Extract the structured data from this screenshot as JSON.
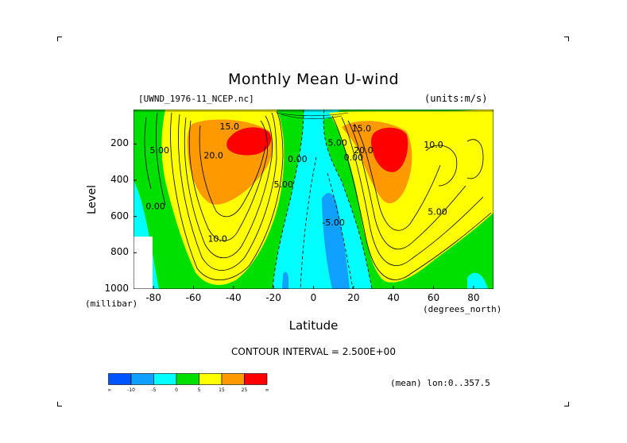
{
  "chart_data": {
    "type": "heatmap",
    "title": "Monthly Mean U-wind",
    "dataset_label": "[UWND_1976-11_NCEP.nc]",
    "units_label": "(units:m/s)",
    "xlabel": "Latitude",
    "ylabel": "Level",
    "x_unit": "(degrees_north)",
    "y_unit": "(millibar)",
    "xlim": [
      -90,
      90
    ],
    "ylim": [
      1000,
      10
    ],
    "x_ticks": [
      -80,
      -60,
      -40,
      -20,
      0,
      20,
      40,
      60,
      80
    ],
    "y_ticks": [
      200,
      400,
      600,
      800,
      1000
    ],
    "contour_interval_text": "CONTOUR INTERVAL = 2.500E+00",
    "mean_info": "(mean) lon:0..357.5",
    "contour_labels": [
      {
        "text": "15.0",
        "lat": -42,
        "lev": 120
      },
      {
        "text": "5.00",
        "lat": -77,
        "lev": 250
      },
      {
        "text": "20.0",
        "lat": -50,
        "lev": 280
      },
      {
        "text": "0.00",
        "lat": -79,
        "lev": 560
      },
      {
        "text": "10.0",
        "lat": -48,
        "lev": 740
      },
      {
        "text": "5.00",
        "lat": -15,
        "lev": 440
      },
      {
        "text": "0.00",
        "lat": -8,
        "lev": 300
      },
      {
        "text": "-5.00",
        "lat": 10,
        "lev": 650
      },
      {
        "text": "5.00",
        "lat": 12,
        "lev": 210
      },
      {
        "text": "0.00",
        "lat": 20,
        "lev": 290
      },
      {
        "text": "15.0",
        "lat": 24,
        "lev": 130
      },
      {
        "text": "20.0",
        "lat": 25,
        "lev": 250
      },
      {
        "text": "10.0",
        "lat": 60,
        "lev": 220
      },
      {
        "text": "5.00",
        "lat": 62,
        "lev": 590
      }
    ],
    "colorbar": {
      "colors": [
        "#0055ff",
        "#10a0ff",
        "#00ffff",
        "#00e000",
        "#ffff00",
        "#ff9900",
        "#ff0000"
      ],
      "labels": [
        "-∞",
        "-10",
        "-5",
        "0",
        "5",
        "15",
        "25",
        "∞"
      ]
    },
    "grid": false,
    "legend_position": "bottom-left"
  }
}
